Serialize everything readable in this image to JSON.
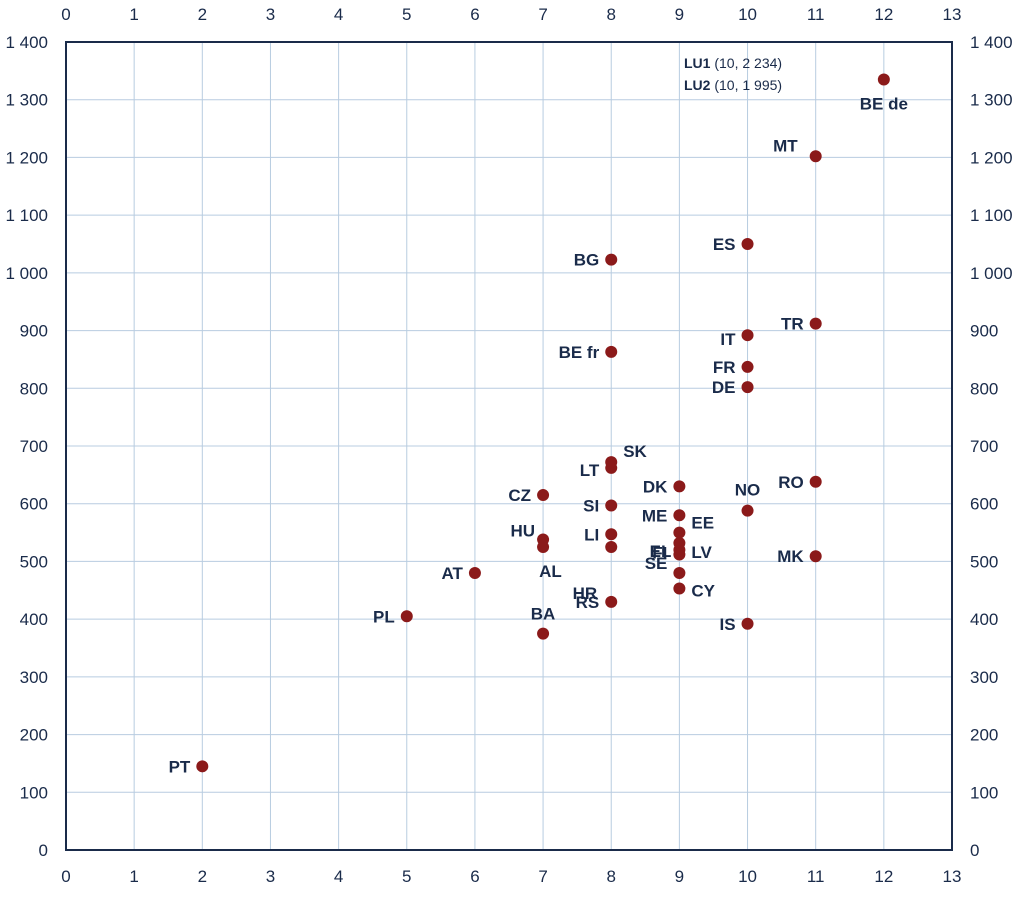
{
  "chart_data": {
    "type": "scatter",
    "title": "",
    "xlabel": "",
    "ylabel": "",
    "xlim": [
      0,
      13
    ],
    "ylim": [
      0,
      1400
    ],
    "grid": true,
    "x_ticks": [
      "0",
      "1",
      "2",
      "3",
      "4",
      "5",
      "6",
      "7",
      "8",
      "9",
      "10",
      "11",
      "12",
      "13"
    ],
    "y_ticks": [
      "0",
      "100",
      "200",
      "300",
      "400",
      "500",
      "600",
      "700",
      "800",
      "900",
      "1 000",
      "1 100",
      "1 200",
      "1 300",
      "1 400"
    ],
    "colors": {
      "point": "#8b1a1a",
      "axis": "#1a2b4a",
      "grid": "#b8cce0"
    },
    "points": [
      {
        "label": "PT",
        "x": 2,
        "y": 145
      },
      {
        "label": "PL",
        "x": 5,
        "y": 405
      },
      {
        "label": "AT",
        "x": 6,
        "y": 480
      },
      {
        "label": "BA",
        "x": 7,
        "y": 375
      },
      {
        "label": "AL",
        "x": 7,
        "y": 525
      },
      {
        "label": "HU",
        "x": 7,
        "y": 538
      },
      {
        "label": "CZ",
        "x": 7,
        "y": 615
      },
      {
        "label": "RS",
        "x": 8,
        "y": 430
      },
      {
        "label": "HR",
        "x": 8,
        "y": 525
      },
      {
        "label": "LI",
        "x": 8,
        "y": 547
      },
      {
        "label": "SI",
        "x": 8,
        "y": 597
      },
      {
        "label": "LT",
        "x": 8,
        "y": 662
      },
      {
        "label": "SK",
        "x": 8,
        "y": 672
      },
      {
        "label": "BE fr",
        "x": 8,
        "y": 863
      },
      {
        "label": "BG",
        "x": 8,
        "y": 1023
      },
      {
        "label": "CY",
        "x": 9,
        "y": 453
      },
      {
        "label": "SE",
        "x": 9,
        "y": 480
      },
      {
        "label": "FI",
        "x": 9,
        "y": 512
      },
      {
        "label": "LV",
        "x": 9,
        "y": 520
      },
      {
        "label": "EL",
        "x": 9,
        "y": 532
      },
      {
        "label": "EE",
        "x": 9,
        "y": 550
      },
      {
        "label": "ME",
        "x": 9,
        "y": 580
      },
      {
        "label": "DK",
        "x": 9,
        "y": 630
      },
      {
        "label": "IS",
        "x": 10,
        "y": 392
      },
      {
        "label": "NO",
        "x": 10,
        "y": 588
      },
      {
        "label": "DE",
        "x": 10,
        "y": 802
      },
      {
        "label": "FR",
        "x": 10,
        "y": 837
      },
      {
        "label": "IT",
        "x": 10,
        "y": 892
      },
      {
        "label": "ES",
        "x": 10,
        "y": 1050
      },
      {
        "label": "MK",
        "x": 11,
        "y": 509
      },
      {
        "label": "RO",
        "x": 11,
        "y": 638
      },
      {
        "label": "TR",
        "x": 11,
        "y": 912
      },
      {
        "label": "MT",
        "x": 11,
        "y": 1202
      },
      {
        "label": "BE de",
        "x": 12,
        "y": 1335
      }
    ],
    "annotations": [
      {
        "bold": "LU1",
        "text": " (10,  2 234)"
      },
      {
        "bold": "LU2",
        "text": " (10,  1 995)"
      }
    ]
  }
}
